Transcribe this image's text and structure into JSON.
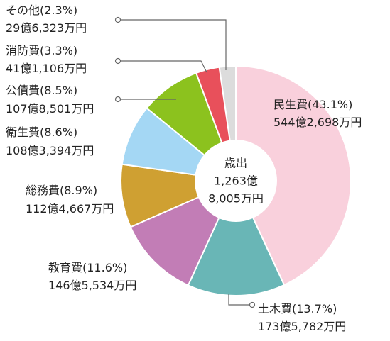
{
  "chart_data": {
    "type": "pie",
    "donut": true,
    "center_label": [
      "歳出",
      "1,263億",
      "8,005万円"
    ],
    "start_angle_deg": 0,
    "direction": "clockwise",
    "slices": [
      {
        "name": "民生費",
        "percent": 43.1,
        "pct_text": "民生費(43.1%)",
        "amount_text": "544億2,698万円",
        "color": "#F9D0DC"
      },
      {
        "name": "土木費",
        "percent": 13.7,
        "pct_text": "土木費(13.7%)",
        "amount_text": "173億5,782万円",
        "color": "#69B6B6"
      },
      {
        "name": "教育費",
        "percent": 11.6,
        "pct_text": "教育費(11.6%)",
        "amount_text": "146億5,534万円",
        "color": "#C27DB6"
      },
      {
        "name": "総務費",
        "percent": 8.9,
        "pct_text": "総務費(8.9%)",
        "amount_text": "112億4,667万円",
        "color": "#CFA032"
      },
      {
        "name": "衛生費",
        "percent": 8.6,
        "pct_text": "衛生費(8.6%)",
        "amount_text": "108億3,394万円",
        "color": "#A4D7F4"
      },
      {
        "name": "公債費",
        "percent": 8.5,
        "pct_text": "公債費(8.5%)",
        "amount_text": "107億8,501万円",
        "color": "#8CC21E"
      },
      {
        "name": "消防費",
        "percent": 3.3,
        "pct_text": "消防費(3.3%)",
        "amount_text": "41億1,106万円",
        "color": "#E8505B"
      },
      {
        "name": "その他",
        "percent": 2.3,
        "pct_text": "その他(2.3%)",
        "amount_text": "29億6,323万円",
        "color": "#DCDCDC"
      }
    ]
  }
}
